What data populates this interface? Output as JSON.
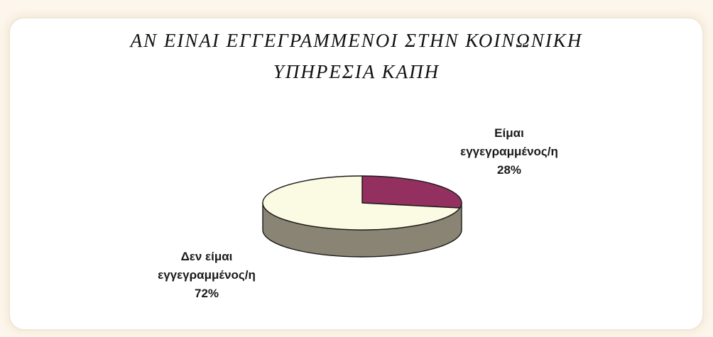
{
  "chart_data": {
    "type": "pie",
    "style": "3d",
    "title_lines": [
      "ΑΝ ΕΙΝΑΙ ΕΓΓΕΓΡΑΜΜΕΝΟΙ ΣΤΗΝ ΚΟΙΝΩΝΙΚΗ",
      "ΥΠΗΡΕΣΙΑ ΚΑΠΗ"
    ],
    "slices": [
      {
        "label_lines": [
          "Είμαι",
          "εγγεγραμμένος/η"
        ],
        "value": 28,
        "value_label": "28%",
        "color": "#93305f"
      },
      {
        "label_lines": [
          "Δεν είμαι",
          "εγγεγραμμένος/η"
        ],
        "value": 72,
        "value_label": "72%",
        "color": "#fbfae2"
      }
    ],
    "side_color": "#8a8474",
    "outline_color": "#1a1a1a",
    "legend": "none"
  }
}
